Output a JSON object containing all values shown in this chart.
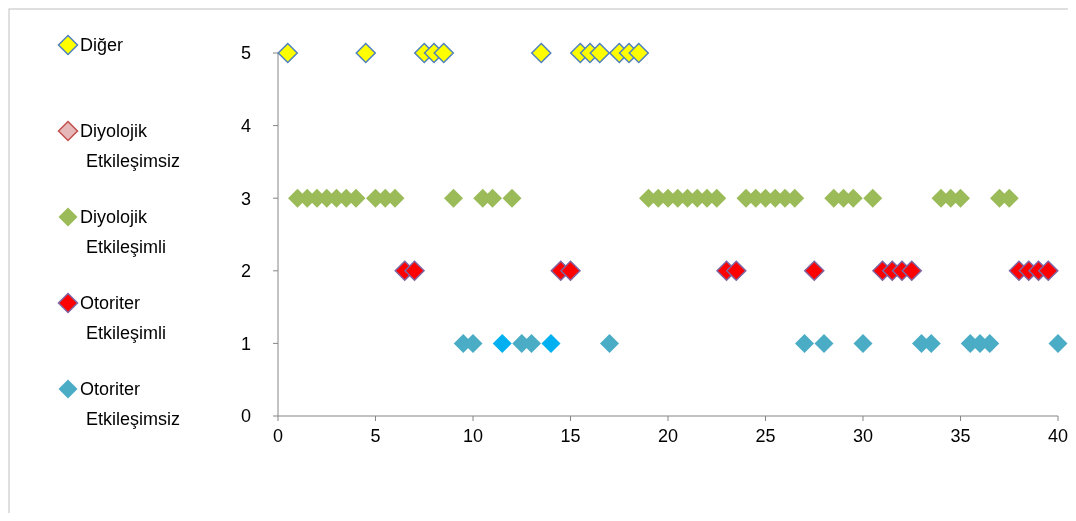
{
  "chart_data": {
    "type": "scatter",
    "marker": "diamond",
    "legend": "left",
    "grid": false,
    "xlim": [
      0,
      40
    ],
    "xticks": [
      0,
      5,
      10,
      15,
      20,
      25,
      30,
      35,
      40
    ],
    "ylim": [
      0,
      5
    ],
    "yticks": [
      0,
      1,
      2,
      3,
      4,
      5
    ],
    "series": [
      {
        "name": "Diğer",
        "color": "#ffff00",
        "x": [
          0.5,
          4.5,
          7.5,
          8,
          8.5,
          13.5,
          15.5,
          16,
          16.5,
          17.5,
          18,
          18.5
        ],
        "values": [
          5,
          5,
          5,
          5,
          5,
          5,
          5,
          5,
          5,
          5,
          5,
          5
        ]
      },
      {
        "name": "Diyolojik Etkileşimsiz",
        "color": "#e6b9b8"
      },
      {
        "name": "Diyolojik Etkileşimli",
        "color": "#9bbb59",
        "x": [
          1,
          1.5,
          2,
          2.5,
          3,
          3.5,
          4,
          5,
          5.5,
          6,
          9,
          10.5,
          11,
          12,
          19,
          19.5,
          20,
          20.5,
          21,
          21.5,
          22,
          22.5,
          24,
          24.5,
          25,
          25.5,
          26,
          26.5,
          28.5,
          29,
          29.5,
          30.5,
          34,
          34.5,
          35,
          37,
          37.5
        ],
        "values": [
          3,
          3,
          3,
          3,
          3,
          3,
          3,
          3,
          3,
          3,
          3,
          3,
          3,
          3,
          3,
          3,
          3,
          3,
          3,
          3,
          3,
          3,
          3,
          3,
          3,
          3,
          3,
          3,
          3,
          3,
          3,
          3,
          3,
          3,
          3,
          3,
          3
        ]
      },
      {
        "name": "Otoriter Etkileşimli",
        "color": "#ff0000",
        "x": [
          6.5,
          7,
          14.5,
          15,
          23,
          23.5,
          27.5,
          31,
          31.5,
          32,
          32.5,
          38,
          38.5,
          39,
          39.5
        ],
        "values": [
          2,
          2,
          2,
          2,
          2,
          2,
          2,
          2,
          2,
          2,
          2,
          2,
          2,
          2,
          2
        ]
      },
      {
        "name": "Otoriter Etkileşimsiz",
        "color": "#4bacc6",
        "x": [
          9.5,
          10,
          11.5,
          12.5,
          13,
          14,
          17,
          27,
          28,
          30,
          33,
          33.5,
          35.5,
          36,
          36.5,
          40
        ],
        "values": [
          1,
          1,
          1,
          1,
          1,
          1,
          1,
          1,
          1,
          1,
          1,
          1,
          1,
          1,
          1,
          1
        ],
        "colors": [
          "#4bacc6",
          "#4bacc6",
          "#00b0f0",
          "#4bacc6",
          "#4bacc6",
          "#00b0f0",
          "#4bacc6",
          "#4bacc6",
          "#4bacc6",
          "#4bacc6",
          "#4bacc6",
          "#4bacc6",
          "#4bacc6",
          "#4bacc6",
          "#4bacc6",
          "#4bacc6"
        ]
      }
    ]
  }
}
